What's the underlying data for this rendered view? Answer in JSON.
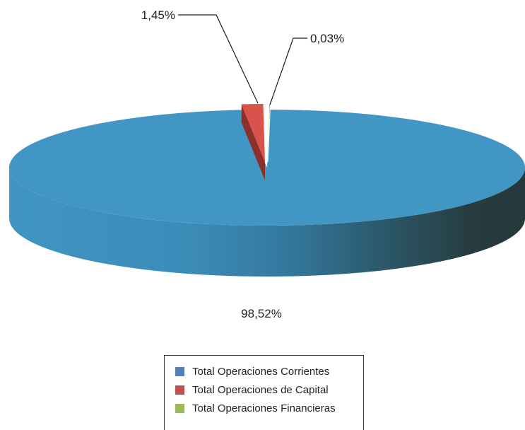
{
  "chart_data": {
    "type": "pie",
    "title": "",
    "categories": [
      "Total Operaciones Corrientes",
      "Total Operaciones de Capital",
      "Total Operaciones Financieras"
    ],
    "values": [
      98.52,
      1.45,
      0.03
    ],
    "value_labels": [
      "98,52%",
      "1,45%",
      "0,03%"
    ],
    "colors": [
      "#4196c4",
      "#d9534a",
      "#9bbb59"
    ],
    "legend_colors": [
      "#4f81bd",
      "#c0504d",
      "#9bbb59"
    ],
    "legend": "bottom",
    "style": "3d"
  }
}
